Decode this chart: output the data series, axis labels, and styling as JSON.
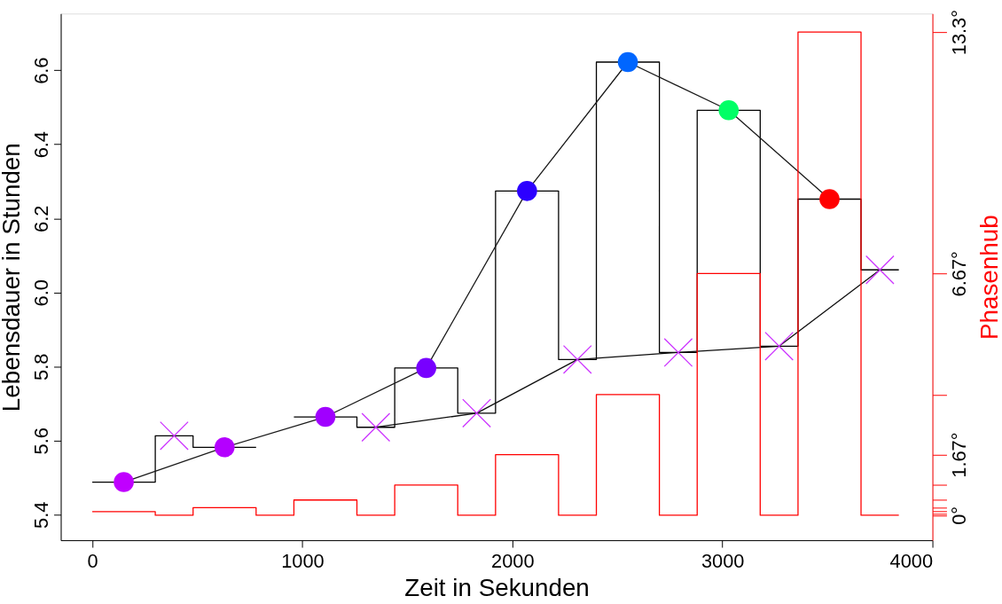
{
  "chart_data": {
    "type": "line",
    "xlabel": "Zeit in Sekunden",
    "ylabel": "Lebensdauer in Stunden",
    "y2label": "Phasenhub",
    "xlim": [
      -150,
      4000
    ],
    "xticks": [
      0,
      1000,
      2000,
      3000,
      4000
    ],
    "ylim": [
      5.331,
      6.753
    ],
    "yticks": [
      5.4,
      5.6,
      5.8,
      {
        "value": 6.0,
        "label": "6.0"
      },
      6.2,
      6.4,
      6.6
    ],
    "y2lim": [
      -0.69,
      13.84
    ],
    "y2ticks": [
      {
        "value": 0,
        "label": "0°"
      },
      {
        "value": 0.05,
        "label": null
      },
      {
        "value": 0.1,
        "label": null
      },
      {
        "value": 0.21,
        "label": null
      },
      {
        "value": 0.42,
        "label": null
      },
      {
        "value": 0.83,
        "label": null
      },
      {
        "value": 1.67,
        "label": "1.67°"
      },
      {
        "value": 3.33,
        "label": null
      },
      {
        "value": 6.67,
        "label": "6.67°"
      },
      {
        "value": 13.33,
        "label": "13.3°"
      }
    ],
    "grid": false,
    "series": [
      {
        "type": "step",
        "color": "#000000",
        "x": [
          0,
          300,
          480,
          780,
          960,
          1260,
          1440,
          1740,
          1920,
          2220,
          2400,
          2700,
          2880,
          3180,
          3360,
          3660,
          3840
        ],
        "values": [
          5.488,
          5.613,
          5.582,
          null,
          5.664,
          5.636,
          5.796,
          5.674,
          6.274,
          5.819,
          6.622,
          5.838,
          6.492,
          5.855,
          6.252,
          6.061,
          6.061
        ]
      },
      {
        "type": "step",
        "axis": "y2",
        "color": "#ff0000",
        "x": [
          0,
          300,
          480,
          780,
          960,
          1260,
          1440,
          1740,
          1920,
          2220,
          2400,
          2700,
          2880,
          3180,
          3360,
          3660,
          3840
        ],
        "values": [
          0.1,
          0,
          0.21,
          0,
          0.42,
          0,
          0.83,
          0,
          1.67,
          0,
          3.33,
          0,
          6.67,
          0,
          13.33,
          0,
          0
        ]
      },
      {
        "type": "line",
        "color": "#1a1a1a",
        "marker": "circle",
        "x": [
          150,
          630,
          1110,
          1590,
          2070,
          2550,
          3030,
          3510
        ],
        "values": [
          5.488,
          5.582,
          5.664,
          5.796,
          6.274,
          6.622,
          6.492,
          6.252
        ],
        "colors": [
          "#c000ff",
          "#b400ff",
          "#a000ff",
          "#7800ff",
          "#2c00ff",
          "#0066ff",
          "#00ff66",
          "#ff0000"
        ]
      },
      {
        "type": "line",
        "color": "#0d0d0d",
        "marker": "cross",
        "x": [
          390,
          870,
          1350,
          1830,
          2310,
          2790,
          3270,
          3750
        ],
        "values": [
          5.613,
          null,
          5.636,
          5.674,
          5.819,
          5.838,
          5.855,
          6.061
        ],
        "colors": [
          "#cc33ff",
          "#cc33ff",
          "#cc33ff",
          "#cc33ff",
          "#cc33ff",
          "#cc33ff",
          "#cc33ff",
          "#cc33ff"
        ]
      }
    ]
  }
}
